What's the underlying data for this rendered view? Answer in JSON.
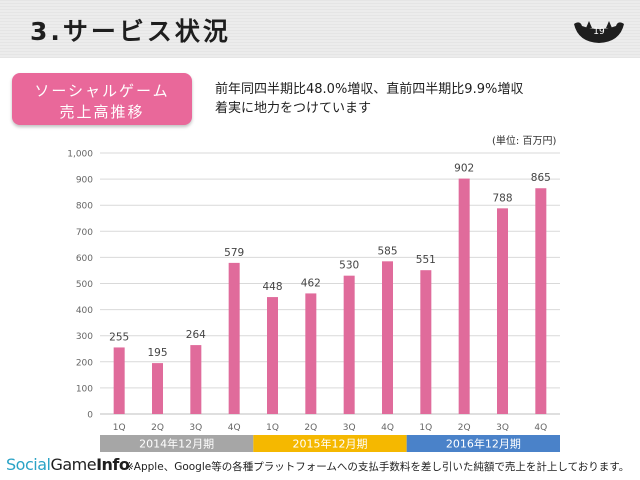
{
  "slide": {
    "title": "3.サービス状況",
    "page_number": "19"
  },
  "badge": {
    "line1": "ソーシャルゲーム",
    "line2": "売上高推移"
  },
  "summary": {
    "line1": "前年同四半期比48.0%増収、直前四半期比9.9%増収",
    "line2": "着実に地力をつけています"
  },
  "unit_label": "(単位: 百万円)",
  "footnote": "※Apple、Google等の各種プラットフォームへの支払手数料を差し引いた純額で売上を計上しております。",
  "logo": {
    "part1": "Social",
    "part2": "Game",
    "part3": "Info"
  },
  "colors": {
    "bar": "#e06b9b",
    "grid": "#d9d9d9",
    "badge": "#e9689a",
    "year_2014": "#a6a6a6",
    "year_2015": "#f5b800",
    "year_2016": "#4a82c9"
  },
  "chart_data": {
    "type": "bar",
    "title": "",
    "xlabel": "",
    "ylabel": "",
    "categories": [
      "1Q",
      "2Q",
      "3Q",
      "4Q",
      "1Q",
      "2Q",
      "3Q",
      "4Q",
      "1Q",
      "2Q",
      "3Q",
      "4Q"
    ],
    "values": [
      255,
      195,
      264,
      579,
      448,
      462,
      530,
      585,
      551,
      902,
      788,
      865
    ],
    "ylim": [
      0,
      1000
    ],
    "y_ticks": [
      "0",
      "100",
      "200",
      "300",
      "400",
      "500",
      "600",
      "700",
      "800",
      "900",
      "1,000"
    ],
    "groups": [
      {
        "label": "2014年12月期",
        "count": 4
      },
      {
        "label": "2015年12月期",
        "count": 4
      },
      {
        "label": "2016年12月期",
        "count": 4
      }
    ],
    "grid": true,
    "legend": "none"
  }
}
